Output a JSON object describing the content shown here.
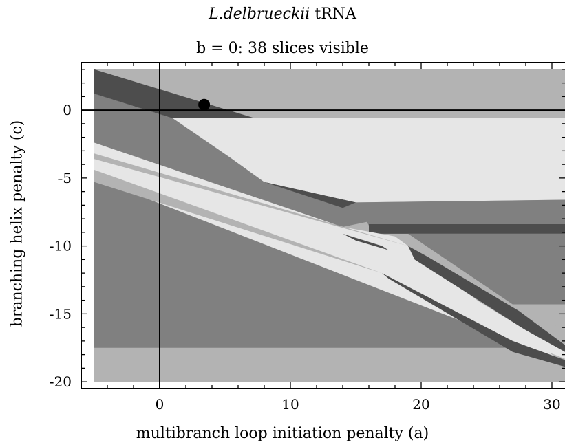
{
  "chart_data": {
    "type": "area",
    "title": "tRNA",
    "title_italic_prefix": "L.delbrueckii",
    "subtitle": "b = 0: 38 slices visible",
    "xlabel": "multibranch loop initiation penalty (a)",
    "ylabel": "branching helix penalty (c)",
    "xlim": [
      -6,
      31
    ],
    "ylim": [
      -20.5,
      3.5
    ],
    "x_ticks": [
      0,
      10,
      20,
      30
    ],
    "y_ticks": [
      0,
      -5,
      -10,
      -15,
      -20
    ],
    "grid": false,
    "reference_lines": {
      "x": 0,
      "y": 0
    },
    "marker": {
      "x": 3.4,
      "y": 0.4
    },
    "region_colors": {
      "light": "#e6e6e6",
      "lightgray": "#b3b3b3",
      "gray": "#808080",
      "dark": "#4d4d4d"
    },
    "regions": [
      {
        "color": "lightgray",
        "points": [
          [
            -5,
            3
          ],
          [
            31,
            3
          ],
          [
            31,
            -20
          ],
          [
            -5,
            -20
          ]
        ]
      },
      {
        "color": "gray",
        "points": [
          [
            -5,
            -4
          ],
          [
            19,
            -12
          ],
          [
            27,
            -17
          ],
          [
            31,
            -18
          ],
          [
            31,
            -20
          ],
          [
            -5,
            -20
          ]
        ]
      },
      {
        "color": "lightgray",
        "points": [
          [
            -5,
            -17.5
          ],
          [
            31,
            -17.5
          ],
          [
            31,
            -20
          ],
          [
            -5,
            -20
          ]
        ]
      },
      {
        "color": "dark",
        "points": [
          [
            -5,
            3
          ],
          [
            -5,
            1.2
          ],
          [
            1,
            -0.6
          ],
          [
            7.3,
            -0.6
          ]
        ]
      },
      {
        "color": "light",
        "points": [
          [
            1,
            -0.6
          ],
          [
            31,
            -0.6
          ],
          [
            31,
            -6.6
          ],
          [
            15,
            -6.8
          ],
          [
            8,
            -5.3
          ],
          [
            5.4,
            -3.5
          ]
        ]
      },
      {
        "color": "gray",
        "points": [
          [
            -5,
            1.2
          ],
          [
            1,
            -0.6
          ],
          [
            5.4,
            -3.5
          ],
          [
            8,
            -5.3
          ],
          [
            15,
            -6.8
          ],
          [
            16,
            -8.2
          ],
          [
            14,
            -8.6
          ],
          [
            -5,
            -2.6
          ]
        ]
      },
      {
        "color": "dark",
        "points": [
          [
            8,
            -5.3
          ],
          [
            15,
            -6.8
          ],
          [
            14,
            -7.2
          ]
        ]
      },
      {
        "color": "gray",
        "points": [
          [
            15,
            -6.8
          ],
          [
            31,
            -6.6
          ],
          [
            31,
            -8.4
          ],
          [
            16,
            -8.5
          ]
        ]
      },
      {
        "color": "dark",
        "points": [
          [
            16,
            -8.4
          ],
          [
            31,
            -8.4
          ],
          [
            31,
            -9.1
          ],
          [
            16,
            -9.1
          ]
        ]
      },
      {
        "color": "gray",
        "points": [
          [
            19,
            -9.1
          ],
          [
            31,
            -9.1
          ],
          [
            31,
            -14.3
          ],
          [
            27,
            -14.3
          ]
        ]
      },
      {
        "color": "lightgray",
        "points": [
          [
            27,
            -14.3
          ],
          [
            31,
            -14.3
          ],
          [
            31,
            -16.2
          ]
        ]
      },
      {
        "color": "light",
        "points": [
          [
            -5,
            -2.4
          ],
          [
            14,
            -8.6
          ],
          [
            18,
            -9.3
          ],
          [
            19,
            -10
          ],
          [
            -5,
            -3.2
          ]
        ]
      },
      {
        "color": "light",
        "points": [
          [
            -5,
            -3.6
          ],
          [
            19,
            -10
          ],
          [
            20,
            -11
          ],
          [
            30,
            -18
          ],
          [
            31,
            -18.5
          ],
          [
            -5,
            -5
          ]
        ]
      },
      {
        "color": "lightgray",
        "points": [
          [
            -5,
            -4.4
          ],
          [
            17,
            -12
          ],
          [
            -5,
            -5.3
          ]
        ]
      },
      {
        "color": "dark",
        "points": [
          [
            14,
            -9.1
          ],
          [
            17,
            -10
          ],
          [
            17.5,
            -10.3
          ],
          [
            15,
            -9.6
          ]
        ]
      },
      {
        "color": "dark",
        "points": [
          [
            19,
            -10
          ],
          [
            20.5,
            -10.8
          ],
          [
            27.5,
            -14.8
          ],
          [
            31,
            -17.3
          ],
          [
            31,
            -17.8
          ],
          [
            28,
            -16.2
          ],
          [
            19.5,
            -11
          ]
        ]
      },
      {
        "color": "dark",
        "points": [
          [
            17,
            -12
          ],
          [
            27,
            -17
          ],
          [
            31,
            -18.4
          ],
          [
            31,
            -18.9
          ],
          [
            27,
            -17.8
          ],
          [
            17.5,
            -12.4
          ]
        ]
      },
      {
        "color": "light",
        "points": [
          [
            19.5,
            -11.2
          ],
          [
            28,
            -16.2
          ],
          [
            31,
            -17.8
          ],
          [
            31,
            -18.3
          ],
          [
            27,
            -16.8
          ]
        ]
      }
    ]
  }
}
